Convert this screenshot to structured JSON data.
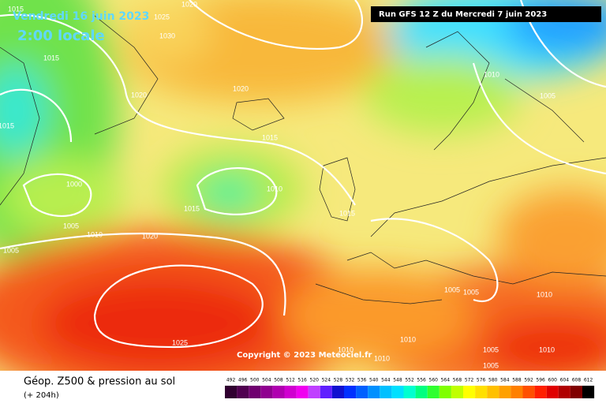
{
  "header": {
    "valid_date": "Vendredi 16 juin 2023",
    "local_time": "2:00 locale",
    "run": "Run GFS 12 Z du Mercredi 7 juin 2023"
  },
  "copyright": "Copyright © 2023 Meteociel.fr",
  "isobar_labels": [
    1015,
    1025,
    1020,
    1030,
    1015,
    1020,
    1020,
    1015,
    1010,
    1005,
    1015,
    1000,
    1010,
    1015,
    1015,
    1005,
    1010,
    1020,
    1005,
    1005,
    1005,
    1010,
    1025,
    1010,
    1010,
    1010,
    1005,
    1010,
    1005
  ],
  "footer": {
    "title": "Géop. Z500 & pression au sol",
    "lead": "(+ 204h)"
  },
  "legend": [
    {
      "label": 492,
      "color": "#300030"
    },
    {
      "label": 496,
      "color": "#500050"
    },
    {
      "label": 500,
      "color": "#700070"
    },
    {
      "label": 504,
      "color": "#900090"
    },
    {
      "label": 508,
      "color": "#b000b0"
    },
    {
      "label": 512,
      "color": "#d000d0"
    },
    {
      "label": 516,
      "color": "#f000f0"
    },
    {
      "label": 520,
      "color": "#c040ff"
    },
    {
      "label": 524,
      "color": "#6020ff"
    },
    {
      "label": 528,
      "color": "#1010d0"
    },
    {
      "label": 532,
      "color": "#0030ff"
    },
    {
      "label": 536,
      "color": "#0060ff"
    },
    {
      "label": 540,
      "color": "#0090ff"
    },
    {
      "label": 544,
      "color": "#00c0ff"
    },
    {
      "label": 548,
      "color": "#00e0ff"
    },
    {
      "label": 552,
      "color": "#00ffd0"
    },
    {
      "label": 556,
      "color": "#00ff80"
    },
    {
      "label": 560,
      "color": "#30ff30"
    },
    {
      "label": 564,
      "color": "#80ff00"
    },
    {
      "label": 568,
      "color": "#c0ff00"
    },
    {
      "label": 572,
      "color": "#ffff00"
    },
    {
      "label": 576,
      "color": "#ffe000"
    },
    {
      "label": 580,
      "color": "#ffc000"
    },
    {
      "label": 584,
      "color": "#ffa000"
    },
    {
      "label": 588,
      "color": "#ff8000"
    },
    {
      "label": 592,
      "color": "#ff5000"
    },
    {
      "label": 596,
      "color": "#ff2000"
    },
    {
      "label": 600,
      "color": "#e00000"
    },
    {
      "label": 604,
      "color": "#b00000"
    },
    {
      "label": 608,
      "color": "#800000"
    },
    {
      "label": 612,
      "color": "#000000"
    }
  ]
}
